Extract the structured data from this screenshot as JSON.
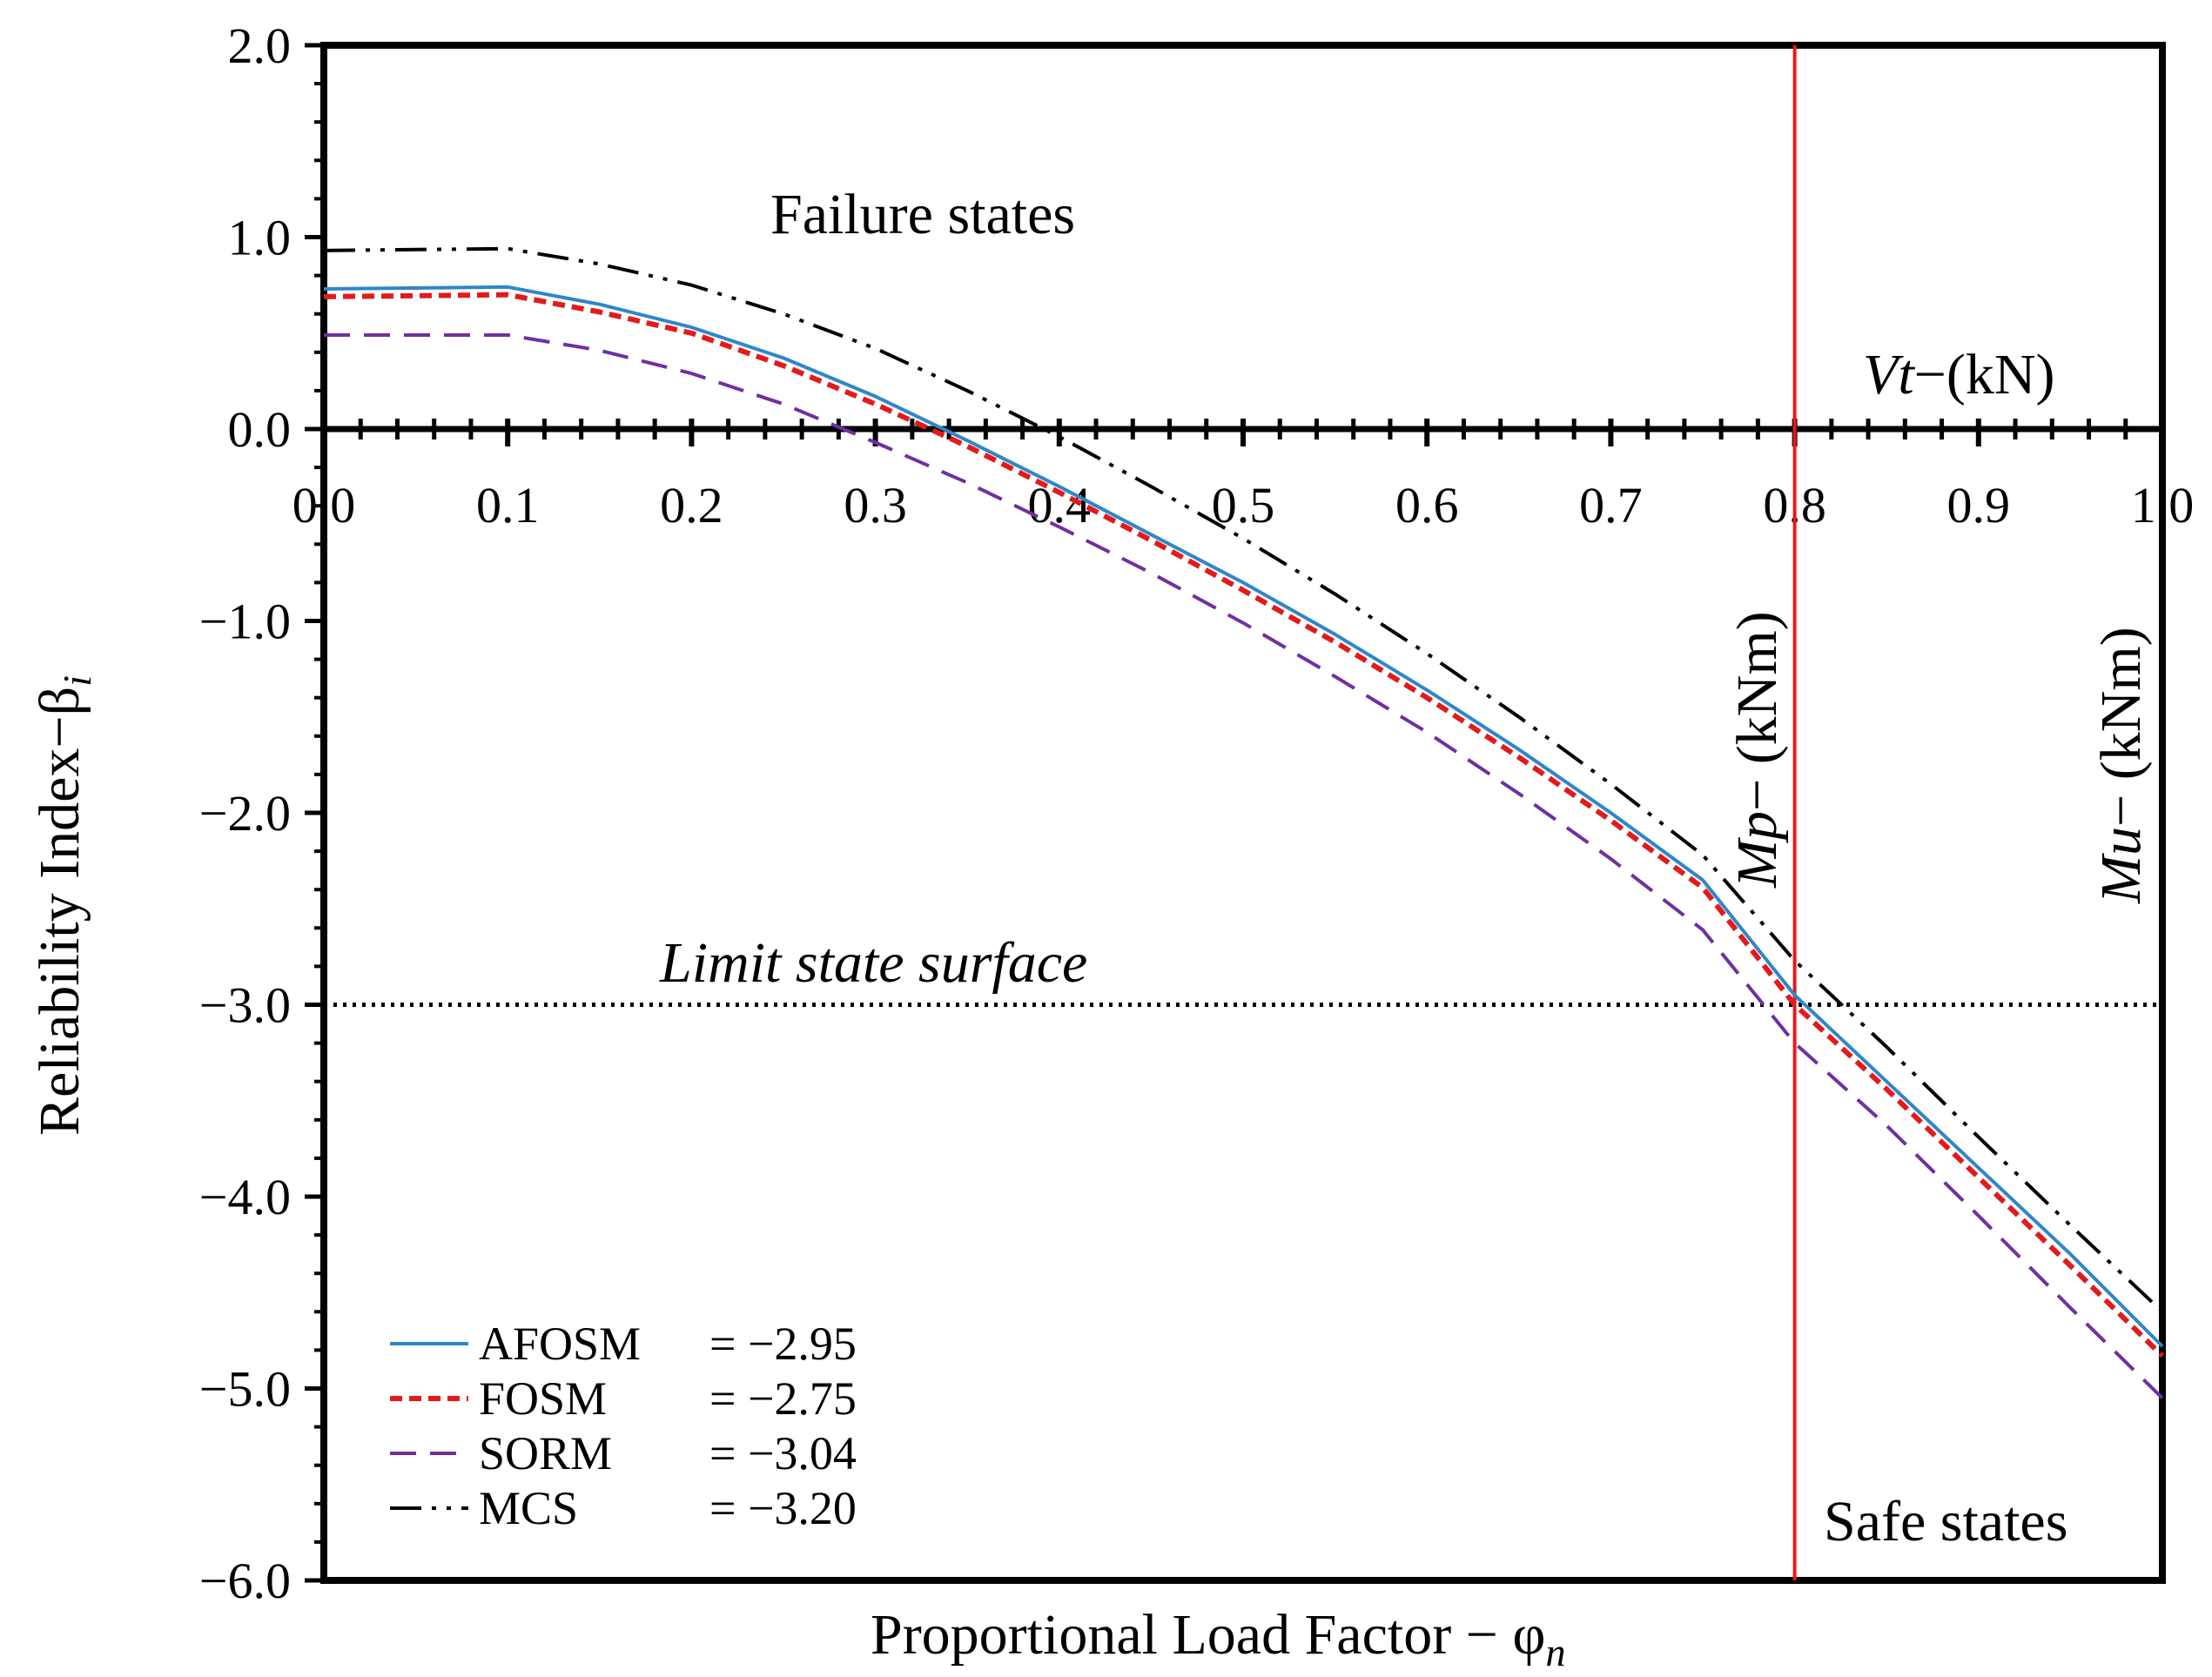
{
  "chart_data": {
    "type": "line",
    "title": "",
    "xlabel": "Proportional Load Factor − φ",
    "xlabel_subscript": "n",
    "ylabel": "Reliability Index−β",
    "ylabel_subscript": "i",
    "xlim": [
      0.0,
      1.0
    ],
    "ylim": [
      -6.0,
      2.0
    ],
    "x_ticks": [
      "0.0",
      "0.1",
      "0.2",
      "0.3",
      "0.4",
      "0.5",
      "0.6",
      "0.7",
      "0.8",
      "0.9",
      "1.0"
    ],
    "y_ticks": [
      "2.0",
      "1.0",
      "0.0",
      "−1.0",
      "−2.0",
      "−3.0",
      "−4.0",
      "−5.0",
      "−6.0"
    ],
    "grid": false,
    "legend_position": "bottom-left",
    "series": [
      {
        "name": "AFOSM",
        "legend_value": "= −2.95",
        "color": "#2f86c9",
        "style": "solid",
        "x": [
          0.0,
          0.1,
          0.15,
          0.2,
          0.25,
          0.3,
          0.35,
          0.4,
          0.45,
          0.5,
          0.55,
          0.6,
          0.65,
          0.7,
          0.75,
          0.8,
          0.85,
          0.9,
          0.95,
          1.0
        ],
        "y": [
          0.73,
          0.74,
          0.65,
          0.53,
          0.37,
          0.17,
          -0.06,
          -0.3,
          -0.55,
          -0.8,
          -1.07,
          -1.36,
          -1.67,
          -2.0,
          -2.35,
          -2.95,
          -3.4,
          -3.85,
          -4.3,
          -4.78
        ]
      },
      {
        "name": "FOSM",
        "legend_value": "= −2.75",
        "color": "#e31a1c",
        "style": "dashed",
        "x": [
          0.0,
          0.1,
          0.15,
          0.2,
          0.25,
          0.3,
          0.35,
          0.4,
          0.45,
          0.5,
          0.55,
          0.6,
          0.65,
          0.7,
          0.75,
          0.8,
          0.85,
          0.9,
          0.95,
          1.0
        ],
        "y": [
          0.69,
          0.7,
          0.61,
          0.5,
          0.33,
          0.13,
          -0.09,
          -0.33,
          -0.58,
          -0.84,
          -1.11,
          -1.4,
          -1.71,
          -2.04,
          -2.39,
          -3.0,
          -3.44,
          -3.9,
          -4.36,
          -4.83
        ]
      },
      {
        "name": "SORM",
        "legend_value": "= −3.04",
        "color": "#7030a0",
        "style": "longdash",
        "x": [
          0.0,
          0.1,
          0.15,
          0.2,
          0.25,
          0.3,
          0.35,
          0.4,
          0.45,
          0.5,
          0.55,
          0.6,
          0.65,
          0.7,
          0.75,
          0.8,
          0.85,
          0.9,
          0.95,
          1.0
        ],
        "y": [
          0.49,
          0.49,
          0.41,
          0.29,
          0.13,
          -0.07,
          -0.28,
          -0.51,
          -0.75,
          -1.01,
          -1.29,
          -1.58,
          -1.9,
          -2.24,
          -2.61,
          -3.2,
          -3.63,
          -4.1,
          -4.58,
          -5.05
        ]
      },
      {
        "name": "MCS",
        "legend_value": "= −3.20",
        "color": "#000000",
        "style": "dashdotdot",
        "x": [
          0.0,
          0.1,
          0.15,
          0.2,
          0.25,
          0.3,
          0.35,
          0.4,
          0.45,
          0.5,
          0.55,
          0.6,
          0.65,
          0.7,
          0.75,
          0.8,
          0.85,
          0.9,
          0.95,
          1.0
        ],
        "y": [
          0.93,
          0.94,
          0.86,
          0.75,
          0.6,
          0.42,
          0.2,
          -0.04,
          -0.3,
          -0.57,
          -0.86,
          -1.17,
          -1.5,
          -1.85,
          -2.22,
          -2.77,
          -3.22,
          -3.69,
          -4.15,
          -4.6
        ]
      }
    ],
    "reference_lines": [
      {
        "orientation": "horizontal",
        "value": -3.0,
        "style": "dotted",
        "color": "#000000",
        "label": "Limit state surface"
      },
      {
        "orientation": "vertical",
        "value": 0.8,
        "style": "solid",
        "color": "#e31a1c",
        "label": "Mp− (kNm)"
      }
    ],
    "annotations": {
      "failure": "Failure states",
      "safe": "Safe states",
      "limit_state": "Limit state surface",
      "vt_italic": "Vt",
      "vt_unit": "−(kN)",
      "mp_italic": "Mp",
      "mp_unit": "− (kNm)",
      "mu_italic": "Mu",
      "mu_unit": "− (kNm)"
    }
  }
}
